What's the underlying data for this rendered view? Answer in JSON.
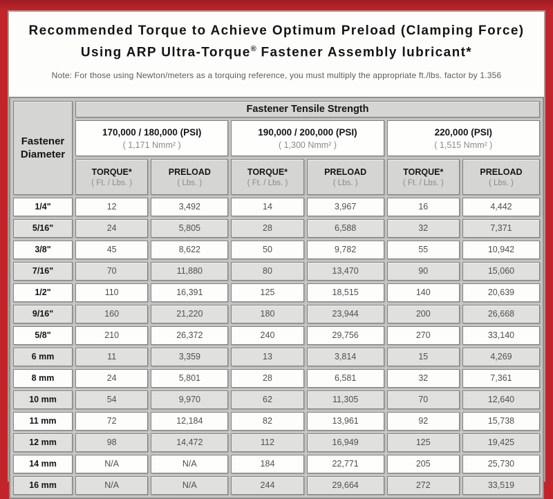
{
  "document": {
    "title_line1": "Recommended Torque to Achieve Optimum Preload (Clamping Force)",
    "title_line2_prefix": "Using ARP Ultra-Torque",
    "title_line2_reg_mark": "®",
    "title_line2_suffix": " Fastener Assembly lubricant*",
    "note": "Note: For those using Newton/meters as a torquing reference, you must multiply the appropriate ft./lbs. factor by 1.356"
  },
  "table": {
    "corner_header_line1": "Fastener",
    "corner_header_line2": "Diameter",
    "top_header": "Fastener Tensile Strength",
    "strength_groups": [
      {
        "psi": "170,000 / 180,000 (PSI)",
        "nmm2": "( 1,171 Nmm² )"
      },
      {
        "psi": "190,000 / 200,000 (PSI)",
        "nmm2": "( 1,300 Nmm² )"
      },
      {
        "psi": "220,000 (PSI)",
        "nmm2": "( 1,515 Nmm² )"
      }
    ],
    "sub_headers": [
      {
        "label": "TORQUE*",
        "unit": "( Ft. / Lbs. )"
      },
      {
        "label": "PRELOAD",
        "unit": "( Lbs. )"
      },
      {
        "label": "TORQUE*",
        "unit": "( Ft. / Lbs. )"
      },
      {
        "label": "PRELOAD",
        "unit": "( Lbs. )"
      },
      {
        "label": "TORQUE*",
        "unit": "( Ft. / Lbs. )"
      },
      {
        "label": "PRELOAD",
        "unit": "( Lbs. )"
      }
    ],
    "rows": [
      {
        "label": "1/4\"",
        "values": [
          "12",
          "3,492",
          "14",
          "3,967",
          "16",
          "4,442"
        ]
      },
      {
        "label": "5/16\"",
        "values": [
          "24",
          "5,805",
          "28",
          "6,588",
          "32",
          "7,371"
        ]
      },
      {
        "label": "3/8\"",
        "values": [
          "45",
          "8,622",
          "50",
          "9,782",
          "55",
          "10,942"
        ]
      },
      {
        "label": "7/16\"",
        "values": [
          "70",
          "11,880",
          "80",
          "13,470",
          "90",
          "15,060"
        ]
      },
      {
        "label": "1/2\"",
        "values": [
          "110",
          "16,391",
          "125",
          "18,515",
          "140",
          "20,639"
        ]
      },
      {
        "label": "9/16\"",
        "values": [
          "160",
          "21,220",
          "180",
          "23,944",
          "200",
          "26,668"
        ]
      },
      {
        "label": "5/8\"",
        "values": [
          "210",
          "26,372",
          "240",
          "29,756",
          "270",
          "33,140"
        ]
      },
      {
        "label": "6 mm",
        "values": [
          "11",
          "3,359",
          "13",
          "3,814",
          "15",
          "4,269"
        ]
      },
      {
        "label": "8 mm",
        "values": [
          "24",
          "5,801",
          "28",
          "6,581",
          "32",
          "7,361"
        ]
      },
      {
        "label": "10 mm",
        "values": [
          "54",
          "9,970",
          "62",
          "11,305",
          "70",
          "12,640"
        ]
      },
      {
        "label": "11 mm",
        "values": [
          "72",
          "12,184",
          "82",
          "13,961",
          "92",
          "15,738"
        ]
      },
      {
        "label": "12 mm",
        "values": [
          "98",
          "14,472",
          "112",
          "16,949",
          "125",
          "19,425"
        ]
      },
      {
        "label": "14 mm",
        "values": [
          "N/A",
          "N/A",
          "184",
          "22,771",
          "205",
          "25,730"
        ]
      },
      {
        "label": "16 mm",
        "values": [
          "N/A",
          "N/A",
          "244",
          "29,664",
          "272",
          "33,519"
        ]
      }
    ]
  },
  "colors": {
    "frame_red": "#c2242b",
    "frame_red_dark": "#9e1d23",
    "sheet_border": "#a79d92",
    "cell_border": "#7f7f7d",
    "header_gray": "#d5d5d3",
    "alt_row_gray": "#e0e0de",
    "spacing_gray": "#c6c6c4",
    "value_text": "#4f4f4d",
    "unit_text": "#8a8a88"
  }
}
